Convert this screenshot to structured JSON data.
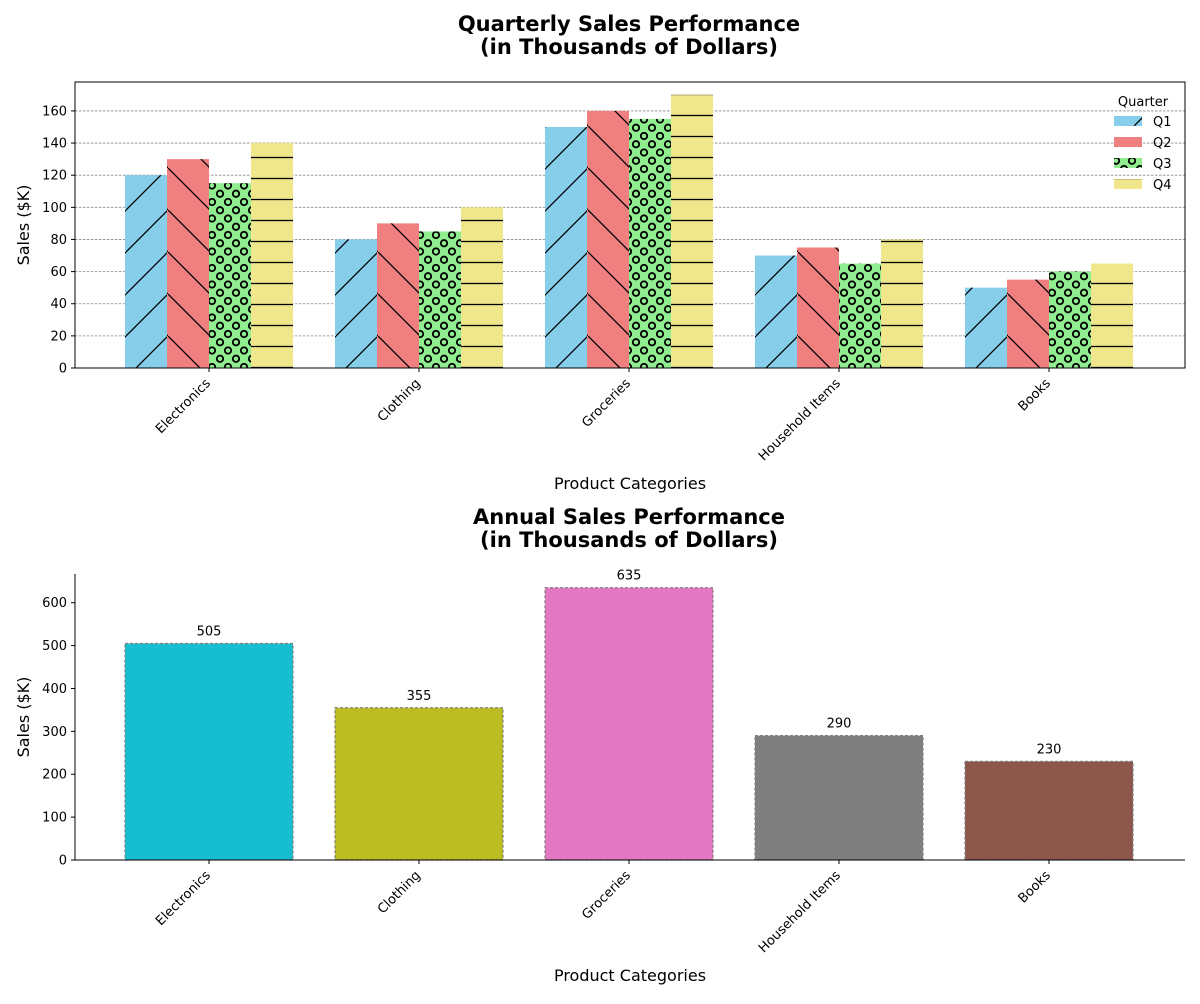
{
  "chart_data": [
    {
      "type": "bar",
      "title_line1": "Quarterly Sales Performance",
      "title_line2": "(in Thousands of Dollars)",
      "xlabel": "Product Categories",
      "ylabel": "Sales ($K)",
      "categories": [
        "Electronics",
        "Clothing",
        "Groceries",
        "Household Items",
        "Books"
      ],
      "series": [
        {
          "name": "Q1",
          "values": [
            120,
            80,
            150,
            70,
            50
          ],
          "color": "#87ceeb",
          "hatch": "forward-slash"
        },
        {
          "name": "Q2",
          "values": [
            130,
            90,
            160,
            75,
            55
          ],
          "color": "#f08080",
          "hatch": "back-slash"
        },
        {
          "name": "Q3",
          "values": [
            115,
            85,
            155,
            65,
            60
          ],
          "color": "#90ee90",
          "hatch": "circles"
        },
        {
          "name": "Q4",
          "values": [
            140,
            100,
            170,
            80,
            65
          ],
          "color": "#f0e68c",
          "hatch": "horizontal"
        }
      ],
      "legend_title": "Quarter",
      "legend_position": "top-right",
      "ylim": [
        0,
        178
      ],
      "yticks": [
        0,
        20,
        40,
        60,
        80,
        100,
        120,
        140,
        160
      ],
      "grid": "horizontal-dashed"
    },
    {
      "type": "bar",
      "title_line1": "Annual Sales Performance",
      "title_line2": "(in Thousands of Dollars)",
      "xlabel": "Product Categories",
      "ylabel": "Sales ($K)",
      "categories": [
        "Electronics",
        "Clothing",
        "Groceries",
        "Household Items",
        "Books"
      ],
      "values": [
        505,
        355,
        635,
        290,
        230
      ],
      "value_labels": [
        "505",
        "355",
        "635",
        "290",
        "230"
      ],
      "colors": [
        "#17becf",
        "#bcbd22",
        "#e377c2",
        "#7f7f7f",
        "#8c564b"
      ],
      "ylim": [
        0,
        667
      ],
      "yticks": [
        0,
        100,
        200,
        300,
        400,
        500,
        600
      ],
      "grid": "none"
    }
  ]
}
